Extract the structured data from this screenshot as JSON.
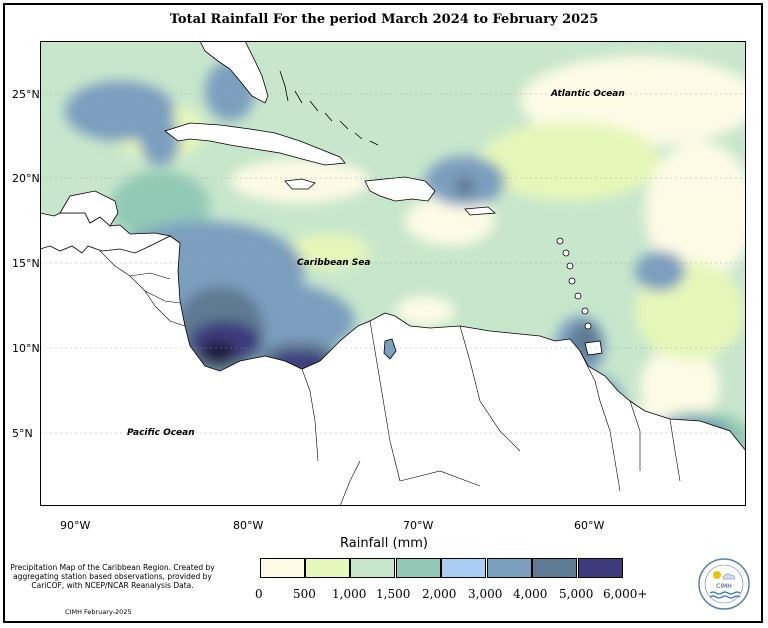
{
  "title": "Total Rainfall For the period March 2024 to February 2025",
  "map": {
    "labels": {
      "atlantic": "Atlantic Ocean",
      "caribbean": "Caribbean Sea",
      "pacific": "Pacific Ocean"
    },
    "lat_ticks": [
      "25°N",
      "20°N",
      "15°N",
      "10°N",
      "5°N"
    ],
    "lon_ticks": [
      "90°W",
      "80°W",
      "70°W",
      "60°W"
    ],
    "land_color": "#ffffff"
  },
  "legend": {
    "title": "Rainfall (mm)",
    "colors": [
      "#fdfbe6",
      "#e6f7ba",
      "#c7e6cc",
      "#92c9b6",
      "#a9cdf2",
      "#7b9fbf",
      "#5f7a93",
      "#3e3b7c"
    ],
    "labels": [
      "0",
      "500",
      "1,000",
      "1,500",
      "2,000",
      "3,000",
      "4,000",
      "5,000",
      "6,000+"
    ]
  },
  "description": "Precipitation Map of the Caribbean Region. Created by aggregating station based observations, provided by CariCOF, with NCEP/NCAR Reanalysis Data.",
  "credit": "CIMH February-2025",
  "logo_text": "CIMH"
}
